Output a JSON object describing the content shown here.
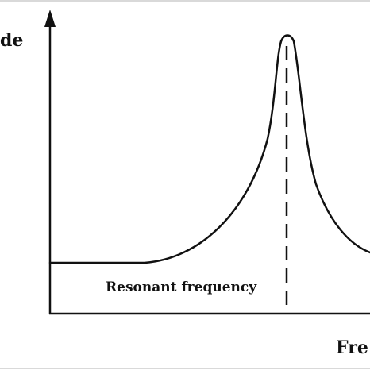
{
  "diagram": {
    "y_axis_label": "de",
    "x_axis_label": "Fre",
    "marker_label": "Resonant frequency",
    "line_color": "#111111"
  }
}
